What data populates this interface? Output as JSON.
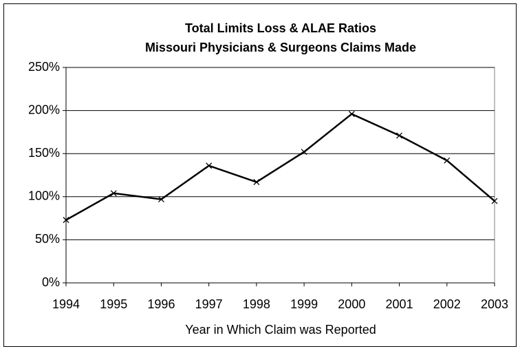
{
  "chart_data": {
    "type": "line",
    "title": "Total Limits Loss & ALAE Ratios",
    "subtitle": "Missouri Physicians & Surgeons Claims Made",
    "x_label": "Year in Which Claim was Reported",
    "x": [
      1994,
      1995,
      1996,
      1997,
      1998,
      1999,
      2000,
      2001,
      2002,
      2003
    ],
    "values": [
      73,
      104,
      97,
      136,
      117,
      152,
      196,
      171,
      142,
      95
    ],
    "color": "#000000",
    "xlim": [
      1994,
      2003
    ],
    "xticks": [
      1994,
      1995,
      1996,
      1997,
      1998,
      1999,
      2000,
      2001,
      2002,
      2003
    ],
    "ylim": [
      0,
      250
    ],
    "yticks": [
      {
        "value": 0,
        "label": "0%"
      },
      {
        "value": 50,
        "label": "50%"
      },
      {
        "value": 100,
        "label": "100%"
      },
      {
        "value": 150,
        "label": "150%"
      },
      {
        "value": 200,
        "label": "200%"
      },
      {
        "value": 250,
        "label": "250%"
      }
    ],
    "grid": true
  }
}
